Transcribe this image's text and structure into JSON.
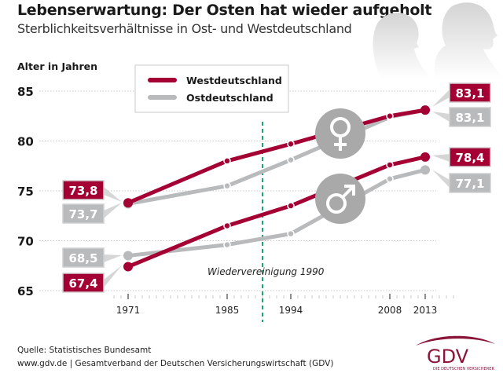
{
  "header": {
    "title": "Lebenserwartung: Der Osten hat wieder aufgeholt",
    "subtitle": "Sterblichkeitsverhältnisse in Ost- und Westdeutschland"
  },
  "footer": {
    "source": "Quelle: Statistisches Bundesamt",
    "site": "www.gdv.de | Gesamtverband der Deutschen Versicherungswirtschaft (GDV)",
    "logo_text": "GDV",
    "logo_tagline": "DIE DEUTSCHEN VERSICHERER"
  },
  "colors": {
    "west": "#a50034",
    "east": "#b9babb",
    "icon_circle": "#a9a9a9",
    "divider": "#1aa57a"
  },
  "icons": [
    "female-symbol-icon",
    "male-symbol-icon",
    "people-silhouette-icon"
  ],
  "chart_data": {
    "type": "line",
    "title": "Lebenserwartung: Der Osten hat wieder aufgeholt",
    "subtitle": "Sterblichkeitsverhältnisse in Ost- und Westdeutschland",
    "xlabel": "",
    "ylabel": "Alter in Jahren",
    "x": [
      1971,
      1985,
      1994,
      2008,
      2013
    ],
    "xticks": [
      "1971",
      "1985",
      "1994",
      "2008",
      "2013"
    ],
    "xlim": [
      1969,
      2017
    ],
    "ylim": [
      65,
      85
    ],
    "yticks": [
      "65",
      "70",
      "75",
      "80",
      "85"
    ],
    "grid": true,
    "legend": {
      "position": "top-center",
      "entries": [
        "Westdeutschland",
        "Ostdeutschland"
      ]
    },
    "annotation": {
      "x": 1990,
      "label": "Wiedervereinigung 1990"
    },
    "series": [
      {
        "name": "Westdeutschland",
        "group": "Frauen",
        "values": [
          73.8,
          78.0,
          79.7,
          82.5,
          83.1
        ],
        "labels": {
          "start": "73,8",
          "end": "83,1"
        }
      },
      {
        "name": "Ostdeutschland",
        "group": "Frauen",
        "values": [
          73.7,
          75.5,
          78.1,
          82.4,
          83.1
        ],
        "labels": {
          "start": "73,7",
          "end": "83,1"
        }
      },
      {
        "name": "Westdeutschland",
        "group": "Männer",
        "values": [
          67.4,
          71.5,
          73.5,
          77.6,
          78.4
        ],
        "labels": {
          "start": "67,4",
          "end": "78,4"
        }
      },
      {
        "name": "Ostdeutschland",
        "group": "Männer",
        "values": [
          68.5,
          69.6,
          70.7,
          76.2,
          77.1
        ],
        "labels": {
          "start": "68,5",
          "end": "77,1"
        }
      }
    ]
  }
}
